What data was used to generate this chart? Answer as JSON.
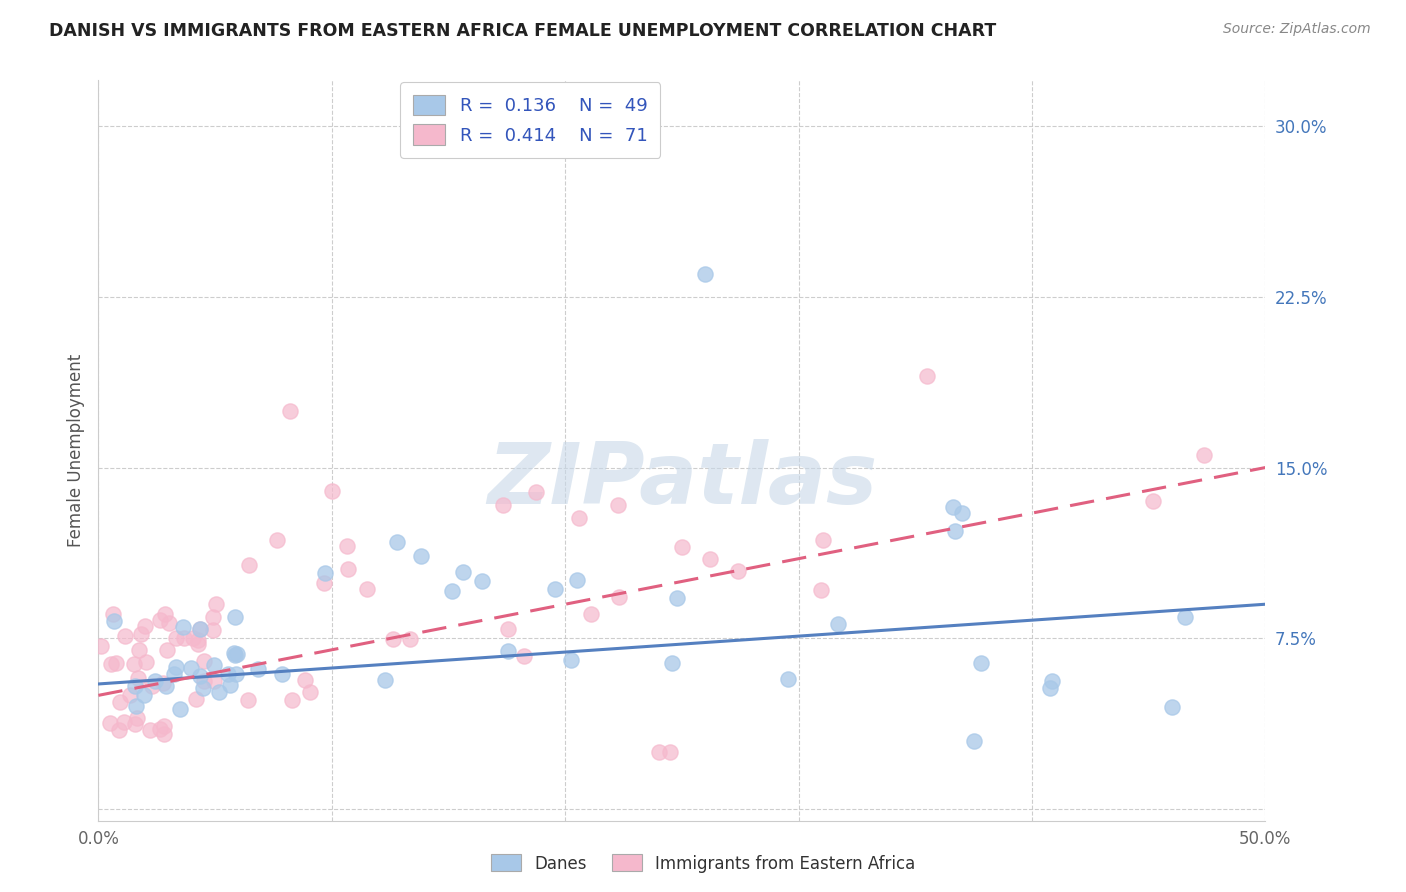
{
  "title": "DANISH VS IMMIGRANTS FROM EASTERN AFRICA FEMALE UNEMPLOYMENT CORRELATION CHART",
  "source": "Source: ZipAtlas.com",
  "ylabel": "Female Unemployment",
  "xlim": [
    0.0,
    0.5
  ],
  "ylim": [
    -0.005,
    0.32
  ],
  "yticks": [
    0.0,
    0.075,
    0.15,
    0.225,
    0.3
  ],
  "yticklabels": [
    "",
    "7.5%",
    "15.0%",
    "22.5%",
    "30.0%"
  ],
  "xticks": [
    0.0,
    0.1,
    0.2,
    0.3,
    0.4,
    0.5
  ],
  "xticklabels": [
    "0.0%",
    "",
    "",
    "",
    "",
    "50.0%"
  ],
  "danes_color": "#a8c8e8",
  "immigrants_color": "#f5b8cc",
  "danes_line_color": "#5580c0",
  "immigrants_line_color": "#e06080",
  "danes_line_start": 0.055,
  "danes_line_end": 0.09,
  "imm_line_start": 0.05,
  "imm_line_end": 0.15,
  "watermark": "ZIPatlas",
  "watermark_color": "#c8d8e8",
  "legend_color": "#3355bb",
  "title_color": "#222222",
  "axis_label_color": "#4477bb",
  "background_color": "#ffffff",
  "grid_color": "#c8c8c8",
  "scatter_size": 120,
  "scatter_lw": 1.2,
  "scatter_edge_alpha": 0.7
}
